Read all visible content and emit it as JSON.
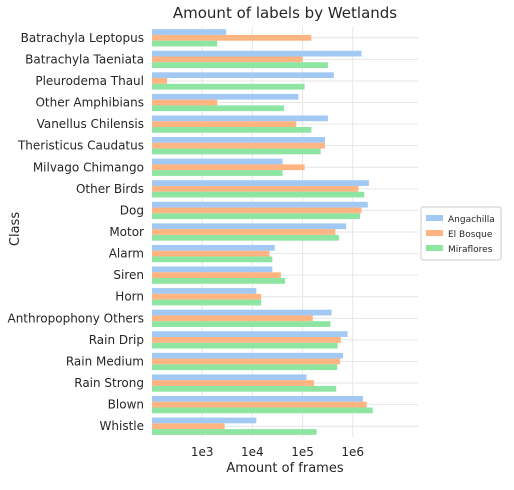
{
  "chart_data": {
    "type": "bar",
    "orientation": "horizontal",
    "title": "Amount of labels by Wetlands",
    "xlabel": "Amount of frames",
    "ylabel": "Class",
    "x_scale": "log",
    "xlim": [
      100,
      20000000
    ],
    "x_ticks": [
      {
        "value": 1000,
        "label": "1e3"
      },
      {
        "value": 10000,
        "label": "1e4"
      },
      {
        "value": 100000,
        "label": "1e5"
      },
      {
        "value": 1000000,
        "label": "1e6"
      }
    ],
    "grid": true,
    "legend_position": "right",
    "categories": [
      "Batrachyla Leptopus",
      "Batrachyla Taeniata",
      "Pleurodema Thaul",
      "Other Amphibians",
      "Vanellus Chilensis",
      "Theristicus Caudatus",
      "Milvago Chimango",
      "Other Birds",
      "Dog",
      "Motor",
      "Alarm",
      "Siren",
      "Horn",
      "Anthropophony Others",
      "Rain Drip",
      "Rain Medium",
      "Rain Strong",
      "Blown",
      "Whistle"
    ],
    "series": [
      {
        "name": "Angachilla",
        "color": "#a1c9f4",
        "values": [
          3000,
          1500000,
          420000,
          83000,
          320000,
          280000,
          40000,
          2100000,
          2000000,
          740000,
          28000,
          25000,
          12000,
          380000,
          790000,
          640000,
          120000,
          1600000,
          12000
        ]
      },
      {
        "name": "El Bosque",
        "color": "#ffb482",
        "values": [
          150000,
          100000,
          200,
          2000,
          75000,
          280000,
          110000,
          1300000,
          1500000,
          450000,
          22000,
          37000,
          15000,
          160000,
          580000,
          560000,
          170000,
          1900000,
          2800
        ]
      },
      {
        "name": "Miraflores",
        "color": "#8de5a1",
        "values": [
          2000,
          320000,
          110000,
          43000,
          150000,
          230000,
          40000,
          1700000,
          1400000,
          530000,
          25000,
          45000,
          15000,
          360000,
          500000,
          490000,
          470000,
          2500000,
          190000
        ]
      }
    ]
  },
  "colors": {
    "grid": "#e6e6e6",
    "text": "#262626",
    "legend_border": "#cccccc"
  }
}
